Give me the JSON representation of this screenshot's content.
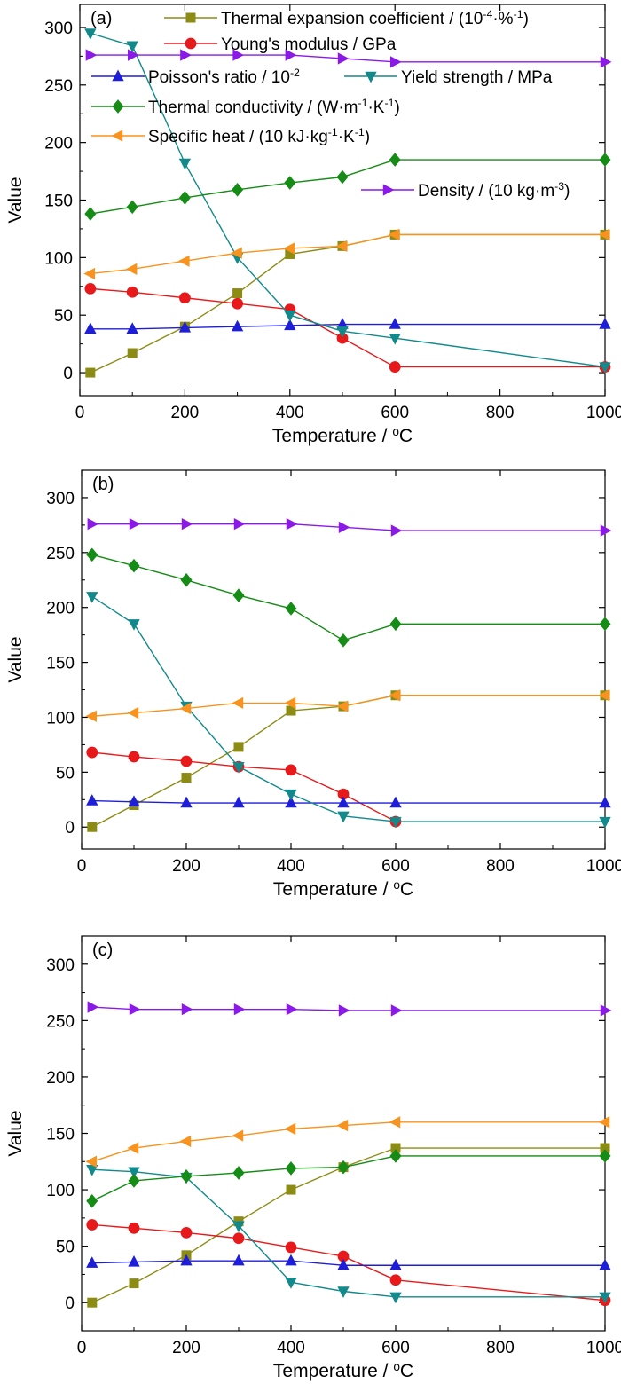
{
  "chart_data": [
    {
      "type": "line",
      "panel": "(a)",
      "xlabel": "Temperature / °C",
      "ylabel": "Value",
      "xlim": [
        0,
        1000
      ],
      "ylim": [
        -20,
        320
      ],
      "xticks": [
        0,
        200,
        400,
        600,
        800,
        1000
      ],
      "yticks": [
        0,
        50,
        100,
        150,
        200,
        250,
        300
      ],
      "legend": true,
      "series": [
        {
          "key": "thermal_expansion",
          "name": "Thermal expansion coefficient / (10⁻⁴·%⁻¹)",
          "color": "#8c8c14",
          "marker": "square",
          "x": [
            20,
            100,
            200,
            300,
            400,
            500,
            600,
            1000
          ],
          "y": [
            0,
            17,
            40,
            69,
            103,
            110,
            120,
            120
          ]
        },
        {
          "key": "youngs_modulus",
          "name": "Young's modulus / GPa",
          "color": "#e8191a",
          "marker": "circle",
          "x": [
            20,
            100,
            200,
            300,
            400,
            500,
            600,
            1000
          ],
          "y": [
            73,
            70,
            65,
            60,
            55,
            30,
            5,
            5
          ]
        },
        {
          "key": "poisson_ratio",
          "name": "Poisson's ratio / 10⁻²",
          "color": "#1e1ed8",
          "marker": "triangle-up",
          "x": [
            20,
            100,
            200,
            300,
            400,
            500,
            600,
            1000
          ],
          "y": [
            38,
            38,
            39,
            40,
            41,
            42,
            42,
            42
          ]
        },
        {
          "key": "yield_strength",
          "name": "Yield strength / MPa",
          "color": "#128a8c",
          "marker": "triangle-down",
          "x": [
            20,
            100,
            200,
            300,
            400,
            500,
            600,
            1000
          ],
          "y": [
            295,
            284,
            182,
            100,
            50,
            36,
            30,
            5
          ]
        },
        {
          "key": "thermal_conductivity",
          "name": "Thermal conductivity / (W·m⁻¹·K⁻¹)",
          "color": "#158c15",
          "marker": "diamond",
          "x": [
            20,
            100,
            200,
            300,
            400,
            500,
            600,
            1000
          ],
          "y": [
            138,
            144,
            152,
            159,
            165,
            170,
            185,
            185
          ]
        },
        {
          "key": "specific_heat",
          "name": "Specific heat / (10 kJ·kg⁻¹·K⁻¹)",
          "color": "#f7931e",
          "marker": "triangle-left",
          "x": [
            20,
            100,
            200,
            300,
            400,
            500,
            600,
            1000
          ],
          "y": [
            86,
            90,
            97,
            104,
            108,
            110,
            120,
            120
          ]
        },
        {
          "key": "density",
          "name": "Density / (10 kg·m⁻³)",
          "color": "#8b19e8",
          "marker": "triangle-right",
          "x": [
            20,
            100,
            200,
            300,
            400,
            500,
            600,
            1000
          ],
          "y": [
            276,
            276,
            276,
            276,
            276,
            273,
            270,
            270
          ]
        }
      ]
    },
    {
      "type": "line",
      "panel": "(b)",
      "xlabel": "Temperature / °C",
      "ylabel": "Value",
      "xlim": [
        0,
        1000
      ],
      "ylim": [
        -20,
        325
      ],
      "xticks": [
        0,
        200,
        400,
        600,
        800,
        1000
      ],
      "yticks": [
        0,
        50,
        100,
        150,
        200,
        250,
        300
      ],
      "legend": false,
      "series": [
        {
          "key": "thermal_expansion",
          "color": "#8c8c14",
          "marker": "square",
          "x": [
            20,
            100,
            200,
            300,
            400,
            500,
            600,
            1000
          ],
          "y": [
            0,
            20,
            45,
            73,
            106,
            110,
            120,
            120
          ]
        },
        {
          "key": "youngs_modulus",
          "color": "#e8191a",
          "marker": "circle",
          "x": [
            20,
            100,
            200,
            300,
            400,
            500,
            600
          ],
          "y": [
            68,
            64,
            60,
            55,
            52,
            30,
            5
          ]
        },
        {
          "key": "poisson_ratio",
          "color": "#1e1ed8",
          "marker": "triangle-up",
          "x": [
            20,
            100,
            200,
            300,
            400,
            500,
            600,
            1000
          ],
          "y": [
            24,
            23,
            22,
            22,
            22,
            22,
            22,
            22
          ]
        },
        {
          "key": "yield_strength",
          "color": "#128a8c",
          "marker": "triangle-down",
          "x": [
            20,
            100,
            200,
            300,
            400,
            500,
            600,
            1000
          ],
          "y": [
            210,
            185,
            110,
            55,
            30,
            10,
            5,
            5
          ]
        },
        {
          "key": "thermal_conductivity",
          "color": "#158c15",
          "marker": "diamond",
          "x": [
            20,
            100,
            200,
            300,
            400,
            500,
            600,
            1000
          ],
          "y": [
            248,
            238,
            225,
            211,
            199,
            170,
            185,
            185
          ]
        },
        {
          "key": "specific_heat",
          "color": "#f7931e",
          "marker": "triangle-left",
          "x": [
            20,
            100,
            200,
            300,
            400,
            500,
            600,
            1000
          ],
          "y": [
            101,
            104,
            108,
            113,
            113,
            110,
            120,
            120
          ]
        },
        {
          "key": "density",
          "color": "#8b19e8",
          "marker": "triangle-right",
          "x": [
            20,
            100,
            200,
            300,
            400,
            500,
            600,
            1000
          ],
          "y": [
            276,
            276,
            276,
            276,
            276,
            273,
            270,
            270
          ]
        }
      ]
    },
    {
      "type": "line",
      "panel": "(c)",
      "xlabel": "Temperature / °C",
      "ylabel": "Value",
      "xlim": [
        0,
        1000
      ],
      "ylim": [
        -25,
        325
      ],
      "xticks": [
        0,
        200,
        400,
        600,
        800,
        1000
      ],
      "yticks": [
        0,
        50,
        100,
        150,
        200,
        250,
        300
      ],
      "legend": false,
      "series": [
        {
          "key": "thermal_expansion",
          "color": "#8c8c14",
          "marker": "square",
          "x": [
            20,
            100,
            200,
            300,
            400,
            500,
            600,
            1000
          ],
          "y": [
            0,
            17,
            42,
            72,
            100,
            120,
            137,
            137
          ]
        },
        {
          "key": "youngs_modulus",
          "color": "#e8191a",
          "marker": "circle",
          "x": [
            20,
            100,
            200,
            300,
            400,
            500,
            600,
            1000
          ],
          "y": [
            69,
            66,
            62,
            57,
            49,
            41,
            20,
            2
          ]
        },
        {
          "key": "poisson_ratio",
          "color": "#1e1ed8",
          "marker": "triangle-up",
          "x": [
            20,
            100,
            200,
            300,
            400,
            500,
            600,
            1000
          ],
          "y": [
            35,
            36,
            37,
            37,
            37,
            33,
            33,
            33
          ]
        },
        {
          "key": "yield_strength",
          "color": "#128a8c",
          "marker": "triangle-down",
          "x": [
            20,
            100,
            200,
            300,
            400,
            500,
            600,
            1000
          ],
          "y": [
            118,
            116,
            111,
            68,
            18,
            10,
            5,
            5
          ]
        },
        {
          "key": "thermal_conductivity",
          "color": "#158c15",
          "marker": "diamond",
          "x": [
            20,
            100,
            200,
            300,
            400,
            500,
            600,
            1000
          ],
          "y": [
            90,
            108,
            112,
            115,
            119,
            120,
            130,
            130
          ]
        },
        {
          "key": "specific_heat",
          "color": "#f7931e",
          "marker": "triangle-left",
          "x": [
            20,
            100,
            200,
            300,
            400,
            500,
            600,
            1000
          ],
          "y": [
            125,
            137,
            143,
            148,
            154,
            157,
            160,
            160
          ]
        },
        {
          "key": "density",
          "color": "#8b19e8",
          "marker": "triangle-right",
          "x": [
            20,
            100,
            200,
            300,
            400,
            500,
            600,
            1000
          ],
          "y": [
            262,
            260,
            260,
            260,
            260,
            259,
            259,
            259
          ]
        }
      ]
    }
  ]
}
